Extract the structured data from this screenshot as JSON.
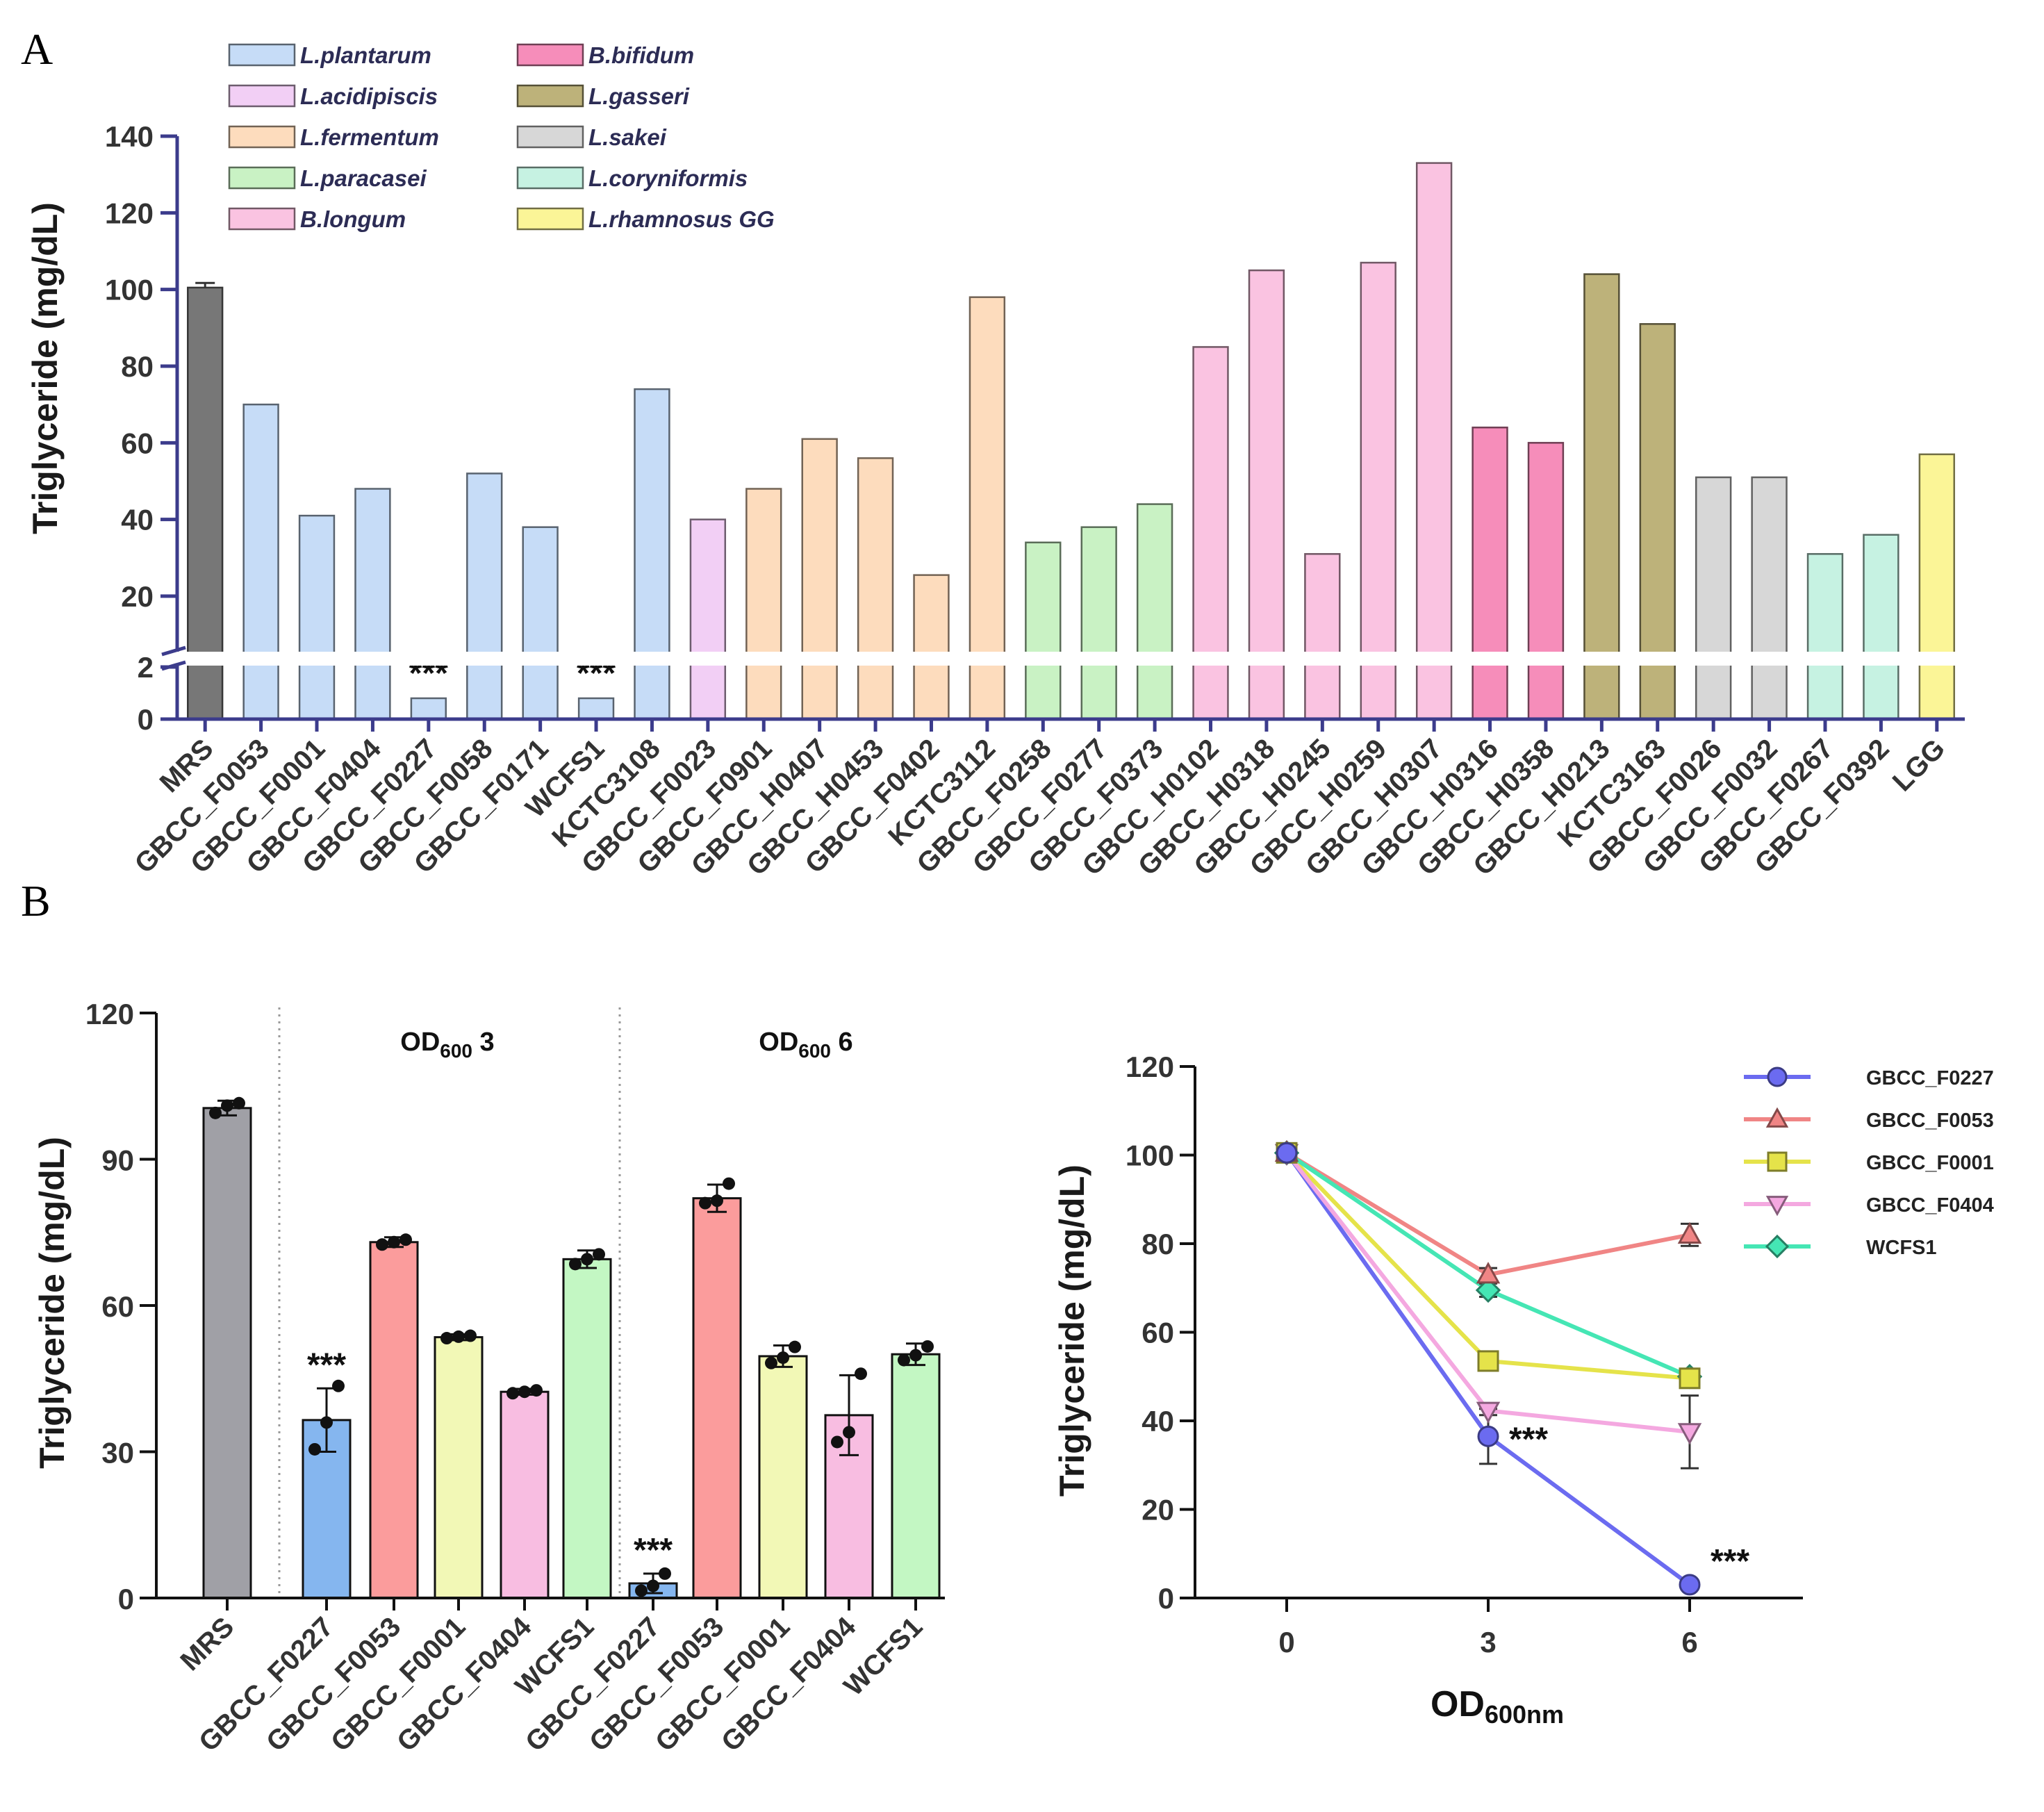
{
  "figure": {
    "panel_a_letter": "A",
    "panel_b_letter": "B"
  },
  "chart_data": [
    {
      "type": "bar",
      "title": "",
      "panel": "A",
      "ylabel": "Triglyceride  (mg/dL)",
      "xlabel": "",
      "ylim": [
        0,
        140
      ],
      "axis_break": [
        2,
        20
      ],
      "lower_ticks": [
        "0",
        "2"
      ],
      "upper_ticks": [
        "20",
        "40",
        "60",
        "80",
        "100",
        "120",
        "140"
      ],
      "significance_label": "***",
      "legend": [
        {
          "name": "L.plantarum",
          "color": "#c6dcf7"
        },
        {
          "name": "L.acidipiscis",
          "color": "#f2cff5"
        },
        {
          "name": "L.fermentum",
          "color": "#fddcbd"
        },
        {
          "name": "L.paracasei",
          "color": "#c9f2c4"
        },
        {
          "name": "B.longum",
          "color": "#fac3e1"
        },
        {
          "name": "B.bifidum",
          "color": "#f68dba"
        },
        {
          "name": "L.gasseri",
          "color": "#bdb27a"
        },
        {
          "name": "L.sakei",
          "color": "#d7d7d7"
        },
        {
          "name": "L.coryniformis",
          "color": "#c6f2e2"
        },
        {
          "name": "L.rhamnosus GG",
          "color": "#fbf597"
        }
      ],
      "control_color": "#777777",
      "categories": [
        "MRS",
        "GBCC_F0053",
        "GBCC_F0001",
        "GBCC_F0404",
        "GBCC_F0227",
        "GBCC_F0058",
        "GBCC_F0171",
        "WCFS1",
        "KCTC3108",
        "GBCC_F0023",
        "GBCC_F0901",
        "GBCC_H0407",
        "GBCC_H0453",
        "GBCC_F0402",
        "KCTC3112",
        "GBCC_F0258",
        "GBCC_F0277",
        "GBCC_F0373",
        "GBCC_H0102",
        "GBCC_H0318",
        "GBCC_H0245",
        "GBCC_H0259",
        "GBCC_H0307",
        "GBCC_H0316",
        "GBCC_H0358",
        "GBCC_H0213",
        "KCTC3163",
        "GBCC_F0026",
        "GBCC_F0032",
        "GBCC_F0267",
        "GBCC_F0392",
        "LGG"
      ],
      "values": [
        100.5,
        70,
        41,
        48,
        0.8,
        52,
        38,
        0.8,
        74,
        40,
        48,
        61,
        56,
        25.5,
        98,
        34,
        38,
        44,
        85,
        105,
        31,
        107,
        133,
        64,
        60,
        104,
        91,
        51,
        51,
        31,
        36,
        57
      ],
      "groups": [
        "control",
        "L.plantarum",
        "L.plantarum",
        "L.plantarum",
        "L.plantarum",
        "L.plantarum",
        "L.plantarum",
        "L.plantarum",
        "L.plantarum",
        "L.acidipiscis",
        "L.fermentum",
        "L.fermentum",
        "L.fermentum",
        "L.fermentum",
        "L.fermentum",
        "L.paracasei",
        "L.paracasei",
        "L.paracasei",
        "B.longum",
        "B.longum",
        "B.longum",
        "B.longum",
        "B.longum",
        "B.bifidum",
        "B.bifidum",
        "L.gasseri",
        "L.gasseri",
        "L.sakei",
        "L.sakei",
        "L.coryniformis",
        "L.coryniformis",
        "L.rhamnosus GG"
      ],
      "significant": [
        "GBCC_F0227",
        "WCFS1"
      ],
      "error": {
        "MRS": 1.2
      }
    },
    {
      "type": "bar",
      "title": "",
      "panel": "B-left",
      "ylabel": "Triglyceride  (mg/dL)",
      "ylim": [
        0,
        120
      ],
      "ticks": [
        "0",
        "30",
        "60",
        "90",
        "120"
      ],
      "significance_label": "***",
      "group_labels": [
        {
          "main": "OD",
          "sub": "600",
          "suffix": " 3"
        },
        {
          "main": "OD",
          "sub": "600",
          "suffix": " 6"
        }
      ],
      "categories": [
        "MRS",
        "GBCC_F0227",
        "GBCC_F0053",
        "GBCC_F0001",
        "GBCC_F0404",
        "WCFS1",
        "GBCC_F0227",
        "GBCC_F0053",
        "GBCC_F0001",
        "GBCC_F0404",
        "WCFS1"
      ],
      "values": [
        100.5,
        36.5,
        73,
        53.5,
        42.3,
        69.5,
        3,
        82,
        49.6,
        37.5,
        50
      ],
      "errors": [
        1.5,
        6.5,
        1,
        0.6,
        0.6,
        1.8,
        2,
        2.8,
        2.2,
        8.2,
        2.2
      ],
      "points": [
        [
          99.5,
          101,
          101.5
        ],
        [
          30.5,
          36,
          43.5
        ],
        [
          72.5,
          73,
          73.5
        ],
        [
          53.3,
          53.6,
          53.8
        ],
        [
          42,
          42.3,
          42.6
        ],
        [
          68.5,
          69.5,
          70.5
        ],
        [
          1.5,
          2.5,
          5
        ],
        [
          81,
          81.5,
          85
        ],
        [
          48.2,
          49.3,
          51.5
        ],
        [
          32,
          34,
          46
        ],
        [
          48.8,
          49.8,
          51.6
        ]
      ],
      "colors": [
        "#a0a0a6",
        "#85b6ef",
        "#fb9c9c",
        "#f2f8b6",
        "#f8bde1",
        "#c3f7c3",
        "#85b6ef",
        "#fb9c9c",
        "#f2f8b6",
        "#f8bde1",
        "#c3f7c3"
      ],
      "significant_index": [
        1,
        6
      ]
    },
    {
      "type": "line",
      "title": "",
      "panel": "B-right",
      "ylabel": "Triglyceride  (mg/dL)",
      "xlabel": {
        "main": "OD",
        "sub": "600nm"
      },
      "x": [
        0,
        3,
        6
      ],
      "xticks": [
        "0",
        "3",
        "6"
      ],
      "ylim": [
        0,
        120
      ],
      "yticks": [
        "0",
        "20",
        "40",
        "60",
        "80",
        "100",
        "120"
      ],
      "significance_label": "***",
      "series": [
        {
          "name": "GBCC_F0227",
          "values": [
            100.5,
            36.5,
            3
          ],
          "errors": [
            0,
            6.2,
            0.8
          ],
          "color": "#6b6bf0",
          "marker": "circle"
        },
        {
          "name": "GBCC_F0053",
          "values": [
            100.5,
            73,
            82
          ],
          "errors": [
            0,
            1.5,
            2.5
          ],
          "color": "#f08585",
          "marker": "triangle-up"
        },
        {
          "name": "GBCC_F0001",
          "values": [
            100.5,
            53.5,
            49.6
          ],
          "errors": [
            0,
            0.8,
            1.5
          ],
          "color": "#e5e34a",
          "marker": "square"
        },
        {
          "name": "GBCC_F0404",
          "values": [
            100.5,
            42.3,
            37.5
          ],
          "errors": [
            0,
            1,
            8.2
          ],
          "color": "#f4a8e0",
          "marker": "triangle-down"
        },
        {
          "name": "WCFS1",
          "values": [
            100.5,
            69.5,
            50
          ],
          "errors": [
            0,
            1.5,
            1.5
          ],
          "color": "#45e6b4",
          "marker": "diamond"
        }
      ],
      "significant": [
        {
          "series": "GBCC_F0227",
          "x": 3
        },
        {
          "series": "GBCC_F0227",
          "x": 6
        }
      ]
    }
  ]
}
